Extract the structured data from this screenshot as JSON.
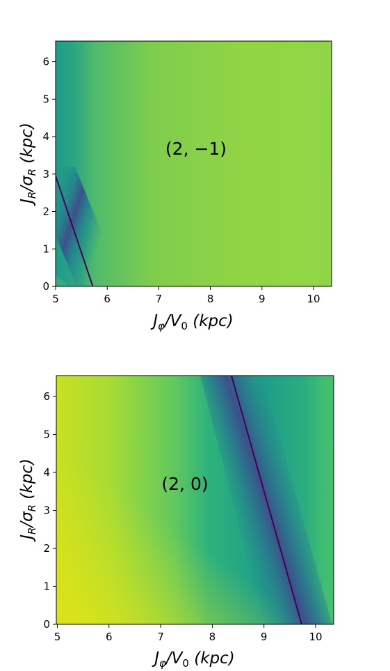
{
  "chart_data": [
    {
      "type": "heatmap",
      "annotation": "(2, −1)",
      "xlabel": {
        "main": "J",
        "sub1": "φ",
        "mid": "/V",
        "sub2": "0",
        "unit": " (kpc)"
      },
      "ylabel": {
        "main": "J",
        "sub1": "R",
        "mid": "/σ",
        "sub2": "R",
        "unit": " (kpc)"
      },
      "xlim": [
        5.0,
        10.35
      ],
      "ylim": [
        0,
        6.55
      ],
      "xticks": [
        "5",
        "6",
        "7",
        "8",
        "9",
        "10"
      ],
      "xtick_values": [
        5,
        6,
        7,
        8,
        9,
        10
      ],
      "yticks": [
        "0",
        "1",
        "2",
        "3",
        "4",
        "5",
        "6"
      ],
      "ytick_values": [
        0,
        1,
        2,
        3,
        4,
        5,
        6
      ],
      "resonance_line": {
        "x": [
          5.0,
          5.72
        ],
        "y": [
          2.95,
          0.0
        ]
      },
      "colormap": "viridis",
      "grid": false
    },
    {
      "type": "heatmap",
      "annotation": "(2, 0)",
      "xlabel": {
        "main": "J",
        "sub1": "φ",
        "mid": "/V",
        "sub2": "0",
        "unit": " (kpc)"
      },
      "ylabel": {
        "main": "J",
        "sub1": "R",
        "mid": "/σ",
        "sub2": "R",
        "unit": " (kpc)"
      },
      "xlim": [
        4.98,
        10.35
      ],
      "ylim": [
        0,
        6.55
      ],
      "xticks": [
        "5",
        "6",
        "7",
        "8",
        "9",
        "10"
      ],
      "xtick_values": [
        5,
        6,
        7,
        8,
        9,
        10
      ],
      "yticks": [
        "0",
        "1",
        "2",
        "3",
        "4",
        "5",
        "6"
      ],
      "ytick_values": [
        0,
        1,
        2,
        3,
        4,
        5,
        6
      ],
      "resonance_line": {
        "x": [
          8.37,
          9.73
        ],
        "y": [
          6.55,
          0.0
        ]
      },
      "colormap": "viridis",
      "grid": false
    }
  ]
}
